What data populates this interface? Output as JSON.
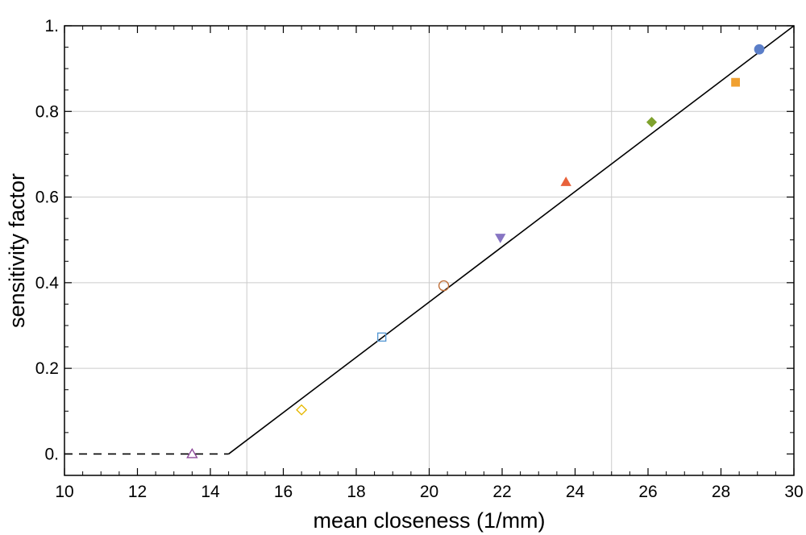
{
  "chart_data": {
    "type": "scatter",
    "title": "",
    "xlabel": "mean closeness (1/mm)",
    "ylabel": "sensitivity factor",
    "xlim": [
      10,
      30
    ],
    "ylim": [
      -0.05,
      1.0
    ],
    "grid": true,
    "x_ticks": [
      10,
      12,
      14,
      16,
      18,
      20,
      22,
      24,
      26,
      28,
      30
    ],
    "x_tick_labels": [
      "10",
      "12",
      "14",
      "16",
      "18",
      "20",
      "22",
      "24",
      "26",
      "28",
      "30"
    ],
    "y_ticks": [
      0,
      0.2,
      0.4,
      0.6,
      0.8,
      1.0
    ],
    "y_tick_labels": [
      "0.",
      "0.2",
      "0.4",
      "0.6",
      "0.8",
      "1."
    ],
    "x_gridlines": [
      15,
      20,
      25
    ],
    "y_gridlines": [
      0.2,
      0.4,
      0.6,
      0.8
    ],
    "points": [
      {
        "x": 13.5,
        "y": 0.0,
        "marker": "triangle-up-open",
        "color": "#8e4a9a"
      },
      {
        "x": 16.5,
        "y": 0.103,
        "marker": "diamond-open",
        "color": "#e6b800"
      },
      {
        "x": 18.7,
        "y": 0.273,
        "marker": "square-open",
        "color": "#5b9bd5"
      },
      {
        "x": 20.4,
        "y": 0.393,
        "marker": "circle-open",
        "color": "#c0703a"
      },
      {
        "x": 21.95,
        "y": 0.505,
        "marker": "triangle-down",
        "color": "#8775c3"
      },
      {
        "x": 23.75,
        "y": 0.635,
        "marker": "triangle-up",
        "color": "#e8613a"
      },
      {
        "x": 26.1,
        "y": 0.775,
        "marker": "diamond",
        "color": "#7fa22e"
      },
      {
        "x": 28.4,
        "y": 0.868,
        "marker": "square",
        "color": "#f0a030"
      },
      {
        "x": 29.05,
        "y": 0.945,
        "marker": "circle",
        "color": "#5b7ec8"
      }
    ],
    "fit_line": {
      "x": [
        14.5,
        30
      ],
      "y": [
        0.0,
        1.0
      ],
      "color": "#000000"
    },
    "baseline_dashed": {
      "x": [
        10,
        14.5
      ],
      "y": [
        0.0,
        0.0
      ],
      "color": "#000000"
    }
  }
}
